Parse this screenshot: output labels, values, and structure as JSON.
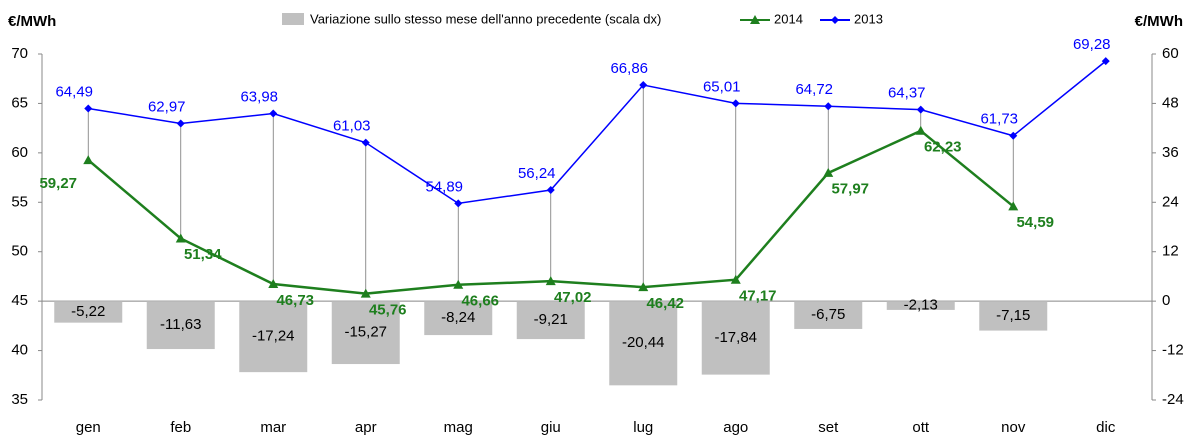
{
  "chart_data": {
    "type": "combo",
    "y_label": "€/MWh",
    "y2_label": "€/MWh",
    "categories": [
      "gen",
      "feb",
      "mar",
      "apr",
      "mag",
      "giu",
      "lug",
      "ago",
      "set",
      "ott",
      "nov",
      "dic"
    ],
    "ylim": [
      35,
      70
    ],
    "yticks": [
      35,
      40,
      45,
      50,
      55,
      60,
      65,
      70
    ],
    "y2lim": [
      -24,
      60
    ],
    "y2ticks": [
      -24,
      -12,
      0,
      12,
      24,
      36,
      48,
      60
    ],
    "series": [
      {
        "name": "Variazione sullo stesso mese dell'anno precedente (scala dx)",
        "kind": "bar",
        "axis": "y2",
        "color": "#c0c0c0",
        "values": [
          -5.22,
          -11.63,
          -17.24,
          -15.27,
          -8.24,
          -9.21,
          -20.44,
          -17.84,
          -6.75,
          -2.13,
          -7.15,
          null
        ],
        "value_labels": [
          "-5,22",
          "-11,63",
          "-17,24",
          "-15,27",
          "-8,24",
          "-9,21",
          "-20,44",
          "-17,84",
          "-6,75",
          "-2,13",
          "-7,15",
          null
        ]
      },
      {
        "name": "2014",
        "kind": "line",
        "marker": "triangle",
        "color": "#1e7f1e",
        "values": [
          59.27,
          51.34,
          46.73,
          45.76,
          46.66,
          47.02,
          46.42,
          47.17,
          57.97,
          62.23,
          54.59,
          null
        ],
        "value_labels": [
          "59,27",
          "51,34",
          "46,73",
          "45,76",
          "46,66",
          "47,02",
          "46,42",
          "47,17",
          "57,97",
          "62,23",
          "54,59",
          null
        ]
      },
      {
        "name": "2013",
        "kind": "line",
        "marker": "diamond",
        "color": "#0000ff",
        "values": [
          64.49,
          62.97,
          63.98,
          61.03,
          54.89,
          56.24,
          66.86,
          65.01,
          64.72,
          64.37,
          61.73,
          69.28
        ],
        "value_labels": [
          "64,49",
          "62,97",
          "63,98",
          "61,03",
          "54,89",
          "56,24",
          "66,86",
          "65,01",
          "64,72",
          "64,37",
          "61,73",
          "69,28"
        ]
      }
    ]
  }
}
